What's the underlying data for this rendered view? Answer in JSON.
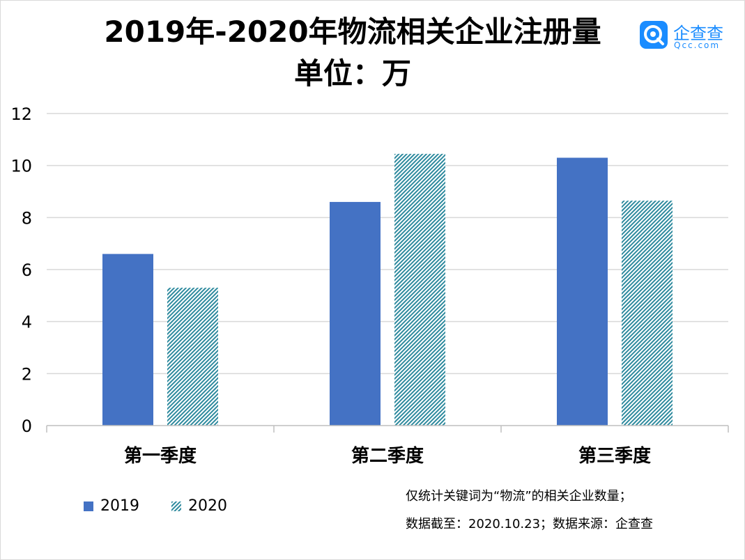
{
  "title": "2019年-2020年物流相关企业注册量",
  "unit_label": "单位：万",
  "logo": {
    "name": "企查查",
    "domain": "Qcc.com"
  },
  "colors": {
    "series_2019": "#4472C4",
    "series_2020_stripe": "#2E8A9E",
    "grid": "#d9d9d9",
    "logo": "#1a8cff"
  },
  "chart_data": {
    "type": "bar",
    "categories": [
      "第一季度",
      "第二季度",
      "第三季度"
    ],
    "series": [
      {
        "name": "2019",
        "values": [
          6.6,
          8.6,
          10.3
        ],
        "pattern": "solid"
      },
      {
        "name": "2020",
        "values": [
          5.3,
          10.45,
          8.65
        ],
        "pattern": "diagonal-stripes"
      }
    ],
    "ylim": [
      0,
      12
    ],
    "yticks": [
      0,
      2,
      4,
      6,
      8,
      10,
      12
    ],
    "grid": true,
    "legend": "bottom-left"
  },
  "notes": {
    "line1": "仅统计关键词为“物流”的相关企业数量；",
    "line2": "数据截至：2020.10.23；数据来源：企查查"
  }
}
